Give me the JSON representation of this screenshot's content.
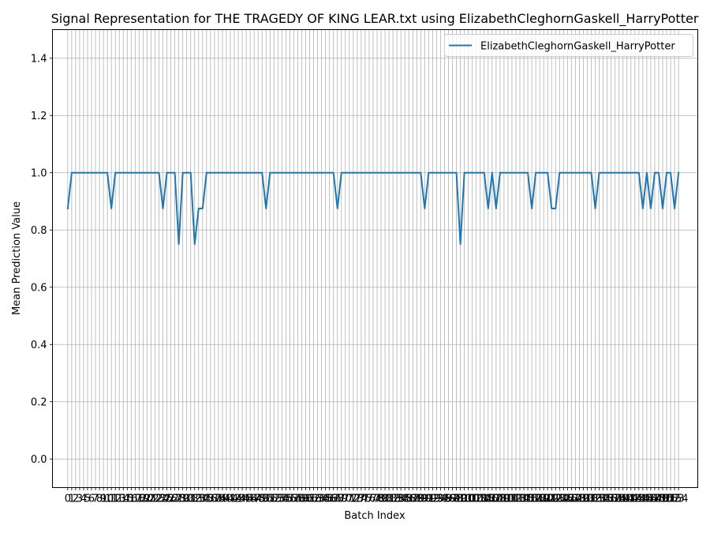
{
  "chart_data": {
    "type": "line",
    "title": "Signal Representation for THE TRAGEDY OF KING LEAR.txt using ElizabethCleghornGaskell_HarryPotter",
    "xlabel": "Batch Index",
    "ylabel": "Mean Prediction Value",
    "xlim": [
      -3.85,
      158.85
    ],
    "ylim": [
      -0.1,
      1.5
    ],
    "yticks": [
      0.0,
      0.2,
      0.4,
      0.6,
      0.8,
      1.0,
      1.2,
      1.4
    ],
    "ytick_labels": [
      "0.0",
      "0.2",
      "0.4",
      "0.6",
      "0.8",
      "1.0",
      "1.2",
      "1.4"
    ],
    "xtick_count": 155,
    "grid": true,
    "legend_position": "top-right",
    "series": [
      {
        "name": "ElizabethCleghornGaskell_HarryPotter",
        "color": "#1f77b4",
        "x_start": 0,
        "values": [
          0.875,
          1,
          1,
          1,
          1,
          1,
          1,
          1,
          1,
          1,
          1,
          0.875,
          1,
          1,
          1,
          1,
          1,
          1,
          1,
          1,
          1,
          1,
          1,
          1,
          0.875,
          1,
          1,
          1,
          0.75,
          1,
          1,
          1,
          0.75,
          0.875,
          0.875,
          1,
          1,
          1,
          1,
          1,
          1,
          1,
          1,
          1,
          1,
          1,
          1,
          1,
          1,
          1,
          0.875,
          1,
          1,
          1,
          1,
          1,
          1,
          1,
          1,
          1,
          1,
          1,
          1,
          1,
          1,
          1,
          1,
          1,
          0.875,
          1,
          1,
          1,
          1,
          1,
          1,
          1,
          1,
          1,
          1,
          1,
          1,
          1,
          1,
          1,
          1,
          1,
          1,
          1,
          1,
          1,
          0.875,
          1,
          1,
          1,
          1,
          1,
          1,
          1,
          1,
          0.75,
          1,
          1,
          1,
          1,
          1,
          1,
          0.875,
          1,
          0.875,
          1,
          1,
          1,
          1,
          1,
          1,
          1,
          1,
          0.875,
          1,
          1,
          1,
          1,
          0.875,
          0.875,
          1,
          1,
          1,
          1,
          1,
          1,
          1,
          1,
          1,
          0.875,
          1,
          1,
          1,
          1,
          1,
          1,
          1,
          1,
          1,
          1,
          1,
          0.875,
          1,
          0.875,
          1,
          1,
          0.875,
          1,
          1,
          0.875,
          1
        ]
      }
    ]
  }
}
